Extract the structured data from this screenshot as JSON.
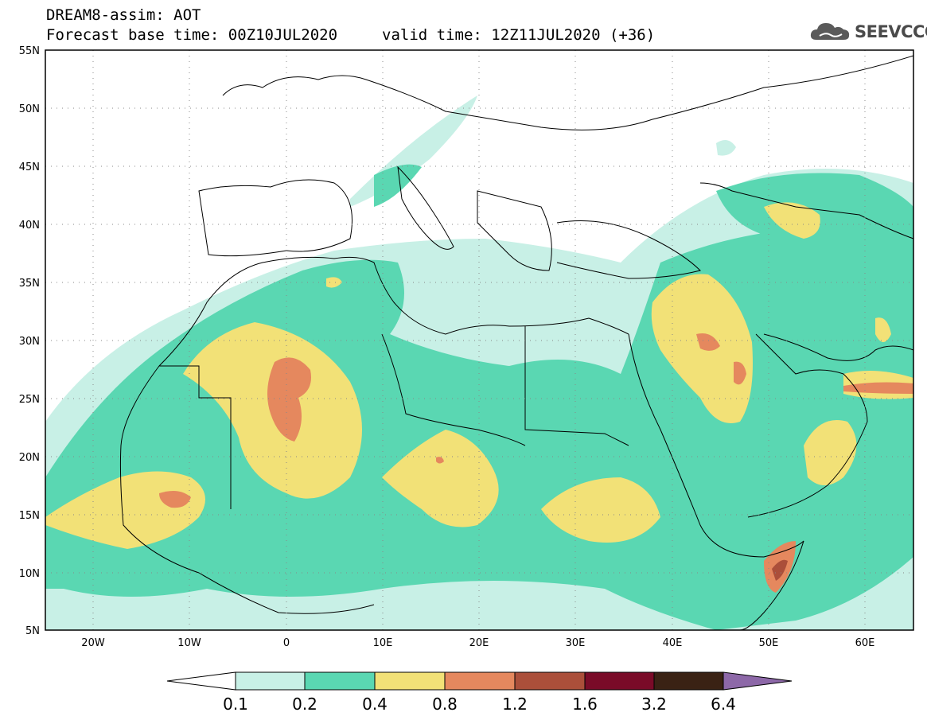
{
  "header": {
    "title_line1": "DREAM8-assim: AOT",
    "title_line2": "Forecast base time: 00Z10JUL2020",
    "valid_time": "valid time: 12Z11JUL2020 (+36)",
    "logo_text": "SEEVCCC"
  },
  "map": {
    "lon_range": [
      -25,
      65
    ],
    "lat_range": [
      5,
      55
    ],
    "lat_ticks": [
      "55N",
      "50N",
      "45N",
      "40N",
      "35N",
      "30N",
      "25N",
      "20N",
      "15N",
      "10N",
      "5N"
    ],
    "lon_ticks": [
      "20W",
      "10W",
      "0",
      "10E",
      "20E",
      "30E",
      "40E",
      "50E",
      "60E"
    ]
  },
  "colorbar": {
    "labels": [
      "0.1",
      "0.2",
      "0.4",
      "0.8",
      "1.2",
      "1.6",
      "3.2",
      "6.4"
    ],
    "colors": {
      "under": "#ffffff",
      "c1": "#c8f0e6",
      "c2": "#5ad7b2",
      "c3": "#f2e177",
      "c4": "#e5885e",
      "c5": "#ab4f3a",
      "c6": "#7a0b28",
      "c7": "#3a2214",
      "over": "#8d68a8"
    }
  }
}
